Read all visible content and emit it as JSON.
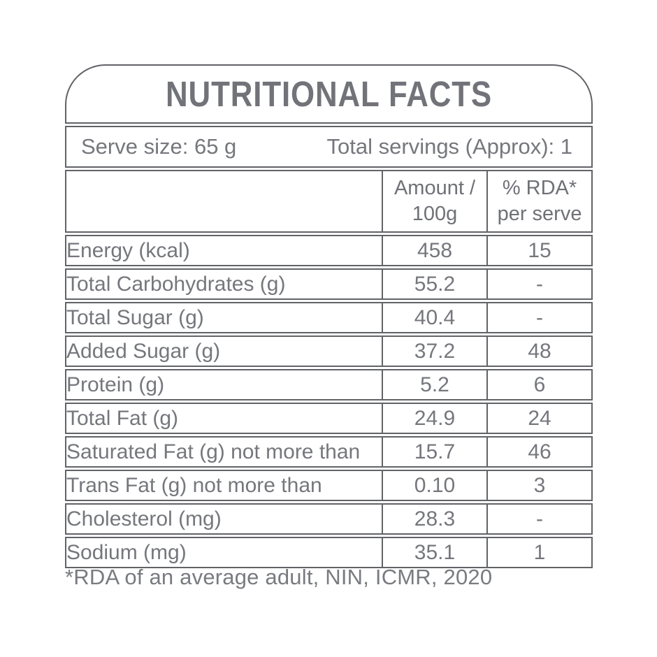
{
  "title": "NUTRITIONAL FACTS",
  "serving_info": {
    "serve_size": "Serve size: 65 g",
    "total_servings": "Total servings (Approx): 1"
  },
  "table": {
    "columns": {
      "label": "",
      "amount": {
        "line1": "Amount /",
        "line2": "100g"
      },
      "rda": {
        "line1": "% RDA*",
        "line2": "per serve"
      }
    },
    "rows": [
      {
        "label": "Energy (kcal)",
        "amount": "458",
        "rda": "15"
      },
      {
        "label": "Total Carbohydrates (g)",
        "amount": "55.2",
        "rda": "-"
      },
      {
        "label": "Total Sugar (g)",
        "amount": "40.4",
        "rda": "-"
      },
      {
        "label": "Added Sugar (g)",
        "amount": "37.2",
        "rda": "48"
      },
      {
        "label": "Protein (g)",
        "amount": "5.2",
        "rda": "6"
      },
      {
        "label": "Total Fat (g)",
        "amount": "24.9",
        "rda": "24"
      },
      {
        "label": "Saturated Fat (g) not more than",
        "amount": "15.7",
        "rda": "46"
      },
      {
        "label": "Trans Fat (g) not more than",
        "amount": "0.10",
        "rda": "3"
      },
      {
        "label": "Cholesterol (mg)",
        "amount": "28.3",
        "rda": "-"
      },
      {
        "label": "Sodium (mg)",
        "amount": "35.1",
        "rda": "1"
      }
    ]
  },
  "footnote": "*RDA of an average adult, NIN, ICMR, 2020",
  "colors": {
    "text": "#75777c",
    "border": "#616367",
    "background": "#ffffff"
  }
}
